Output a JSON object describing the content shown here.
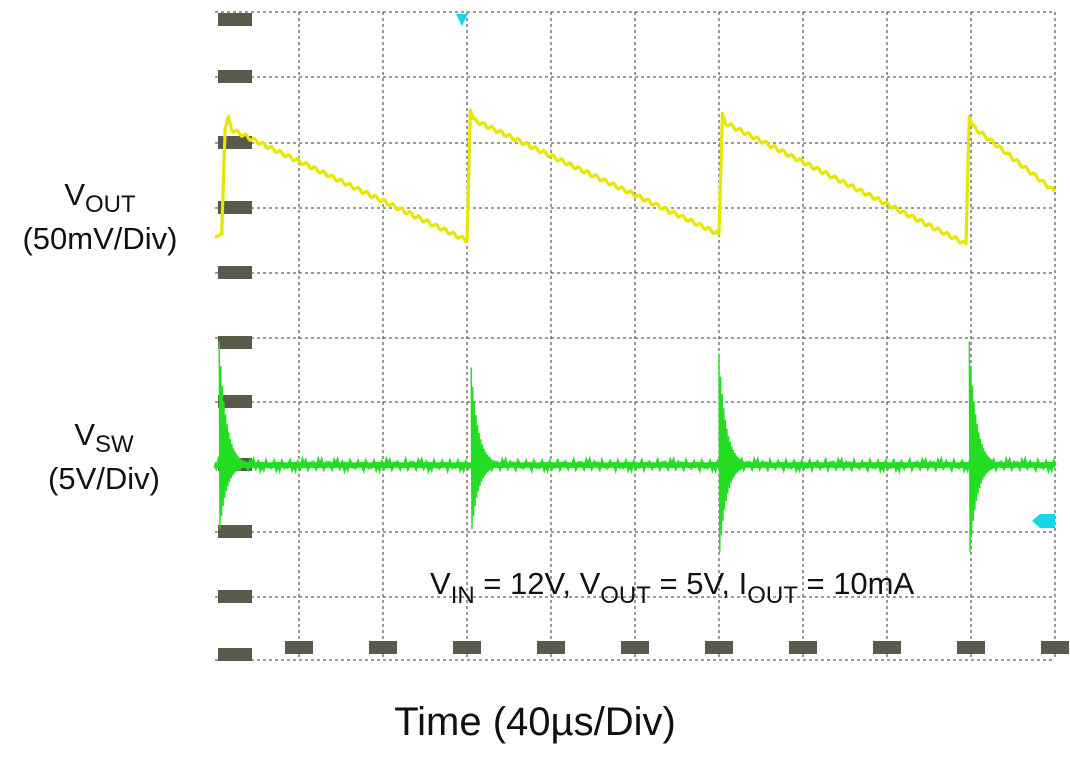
{
  "chart_data": {
    "type": "line",
    "xlabel": "Time (40µs/Div)",
    "x_divisions": 10,
    "grid": true,
    "series": [
      {
        "name": "VOUT",
        "label_main": "V",
        "label_sub": "OUT",
        "scale": "(50mV/Div)",
        "color": "#e6e600",
        "x_div": [
          0.0,
          0.08,
          0.12,
          0.16,
          0.2,
          3.0,
          3.04,
          3.08,
          6.0,
          6.04,
          6.08,
          8.94,
          8.98,
          9.02,
          10.0
        ],
        "y_div": [
          -0.45,
          -0.4,
          1.2,
          1.4,
          1.2,
          -0.5,
          1.5,
          1.35,
          -0.4,
          1.45,
          1.3,
          -0.55,
          1.4,
          1.25,
          0.25
        ]
      },
      {
        "name": "VSW",
        "label_main": "V",
        "label_sub": "SW",
        "scale": "(5V/Div)",
        "color": "#22dd22",
        "baseline_div": 0,
        "spike_x_div": [
          0.05,
          3.05,
          6.0,
          8.98
        ],
        "spike_pos_div": [
          1.9,
          1.5,
          1.7,
          1.9
        ],
        "spike_neg_div": [
          -1.1,
          -1.1,
          -1.5,
          -1.5
        ]
      }
    ]
  },
  "conditions": {
    "vin_main": "V",
    "vin_sub": "IN",
    "vin_val": " = 12V, ",
    "vout_main": "V",
    "vout_sub": "OUT",
    "vout_val": " = 5V, ",
    "iout_main": "I",
    "iout_sub": "OUT",
    "iout_val": " = 10mA"
  },
  "colors": {
    "grid": "#606060",
    "marker_box": "#5a5a4a",
    "trigger": "#19d4e6"
  }
}
